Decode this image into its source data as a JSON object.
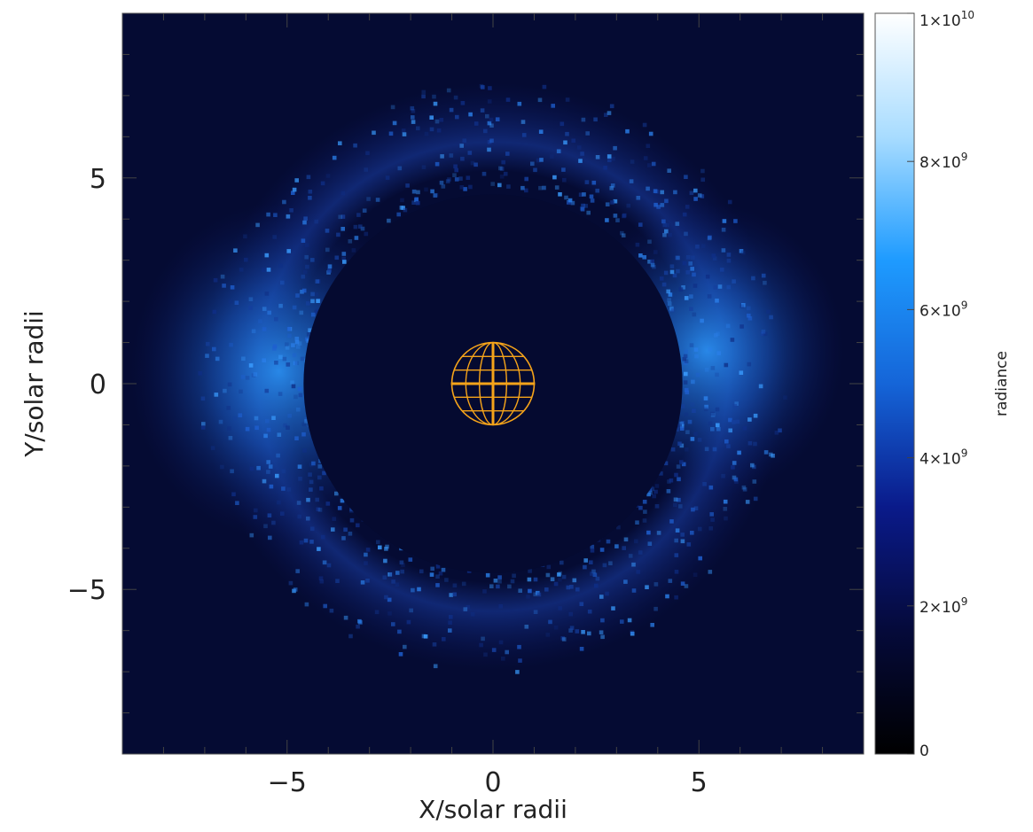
{
  "chart_data": {
    "type": "heatmap",
    "title": "",
    "xlabel": "X/solar radii",
    "ylabel": "Y/solar radii",
    "xlim": [
      -9,
      9
    ],
    "ylim": [
      -9,
      9
    ],
    "x_ticks": [
      {
        "value": -5,
        "label": "−5"
      },
      {
        "value": 0,
        "label": "0"
      },
      {
        "value": 5,
        "label": "5"
      }
    ],
    "y_ticks": [
      {
        "value": 5,
        "label": "5"
      },
      {
        "value": 0,
        "label": "0"
      },
      {
        "value": -5,
        "label": "−5"
      }
    ],
    "occulter_radius": 4.6,
    "sun_radius": 1,
    "sun_color": "#f5a31a",
    "colorbar": {
      "label": "radiance",
      "range": [
        0,
        10000000000
      ],
      "ticks": [
        {
          "value": 0,
          "base": "0",
          "exp": ""
        },
        {
          "value": 2000000000,
          "base": "2×10",
          "exp": "9"
        },
        {
          "value": 4000000000,
          "base": "4×10",
          "exp": "9"
        },
        {
          "value": 6000000000,
          "base": "6×10",
          "exp": "9"
        },
        {
          "value": 8000000000,
          "base": "8×10",
          "exp": "9"
        },
        {
          "value": 10000000000,
          "base": "1×10",
          "exp": "10"
        }
      ],
      "colors": [
        "#000000",
        "#050a3a",
        "#0a1a8a",
        "#1565d8",
        "#1e9bff",
        "#a8dcff",
        "#ffffff"
      ]
    },
    "grid": false,
    "legend": "none"
  }
}
